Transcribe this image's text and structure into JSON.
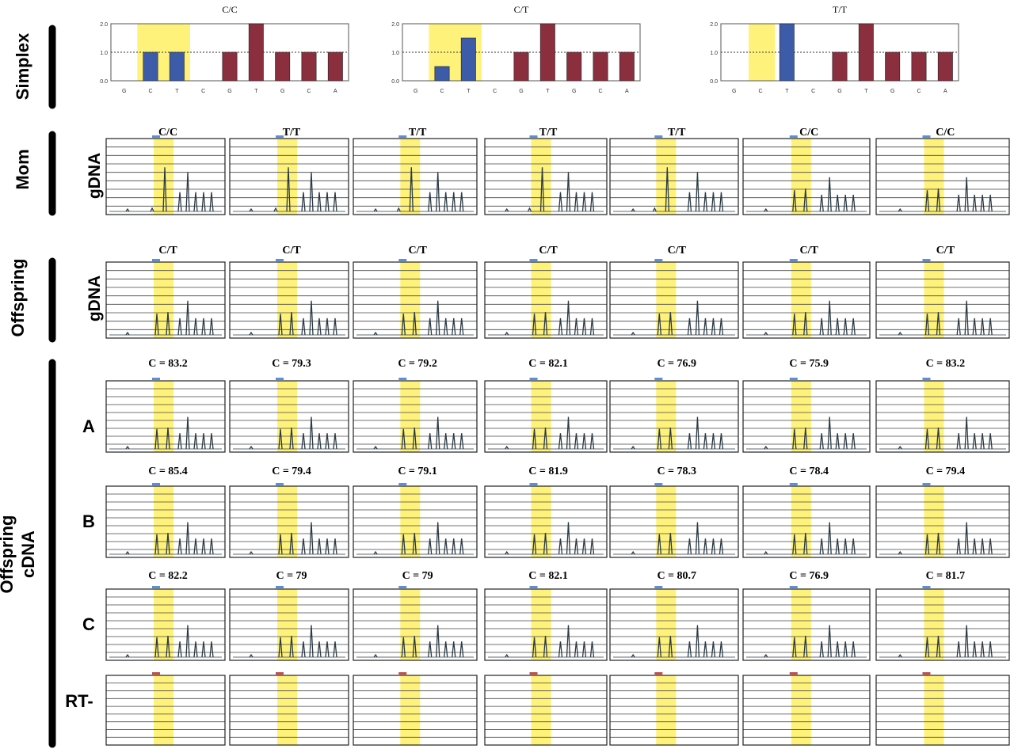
{
  "labels": {
    "simplex": "Simplex",
    "mom": "Mom",
    "offspring": "Offspring",
    "gdna": "gDNA",
    "offspring_cdna_1": "Offspring",
    "offspring_cdna_2": "cDNA",
    "row_a": "A",
    "row_b": "B",
    "row_c": "C",
    "rt_minus": "RT-"
  },
  "colors": {
    "highlight": "#FFF27A",
    "c_bar": "#3C5BA8",
    "t_bar": "#8B2E3E",
    "peak": "#2B3A45",
    "marker_blue": "#5A8FE0",
    "marker_red": "#C0504D"
  },
  "chart_data": [
    {
      "type": "bar",
      "panel": "simplex-1",
      "title": "C/C",
      "categories": [
        "G",
        "C",
        "T",
        "C",
        "G",
        "T",
        "G",
        "C",
        "A"
      ],
      "values": [
        0,
        1.0,
        1.0,
        0,
        1.0,
        2.0,
        1.0,
        1.0,
        1.0
      ],
      "yticks": [
        "0.0",
        "1.0",
        "2.0"
      ],
      "ylim": [
        0,
        2.0
      ]
    },
    {
      "type": "bar",
      "panel": "simplex-2",
      "title": "C/T",
      "categories": [
        "G",
        "C",
        "T",
        "C",
        "G",
        "T",
        "G",
        "C",
        "A"
      ],
      "values": [
        0,
        0.5,
        1.5,
        0,
        1.0,
        2.0,
        1.0,
        1.0,
        1.0
      ],
      "yticks": [
        "0.0",
        "1.0",
        "2.0"
      ],
      "ylim": [
        0,
        2.0
      ]
    },
    {
      "type": "bar",
      "panel": "simplex-3",
      "title": "T/T",
      "categories": [
        "G",
        "C",
        "T",
        "C",
        "G",
        "T",
        "G",
        "C",
        "A"
      ],
      "values": [
        0,
        0,
        2.0,
        0,
        1.0,
        2.0,
        1.0,
        1.0,
        1.0
      ],
      "yticks": [
        "0.0",
        "1.0",
        "2.0"
      ],
      "ylim": [
        0,
        2.0
      ]
    },
    {
      "type": "line",
      "panel": "pyrogram-grid",
      "rows": [
        {
          "name": "mom-gdna",
          "titles": [
            "C/C",
            "T/T",
            "T/T",
            "T/T",
            "T/T",
            "C/C",
            "C/C"
          ]
        },
        {
          "name": "offspring-gdna",
          "titles": [
            "C/T",
            "C/T",
            "C/T",
            "C/T",
            "C/T",
            "C/T",
            "C/T"
          ]
        },
        {
          "name": "offspring-cdna-a",
          "titles": [
            "C = 83.2",
            "C = 79.3",
            "C = 79.2",
            "C = 82.1",
            "C = 76.9",
            "C = 75.9",
            "C = 83.2"
          ]
        },
        {
          "name": "offspring-cdna-b",
          "titles": [
            "C = 85.4",
            "C = 79.4",
            "C = 79.1",
            "C = 81.9",
            "C = 78.3",
            "C = 78.4",
            "C = 79.4"
          ]
        },
        {
          "name": "offspring-cdna-c",
          "titles": [
            "C = 82.2",
            "C = 79",
            "C = 79",
            "C = 82.1",
            "C = 80.7",
            "C = 76.9",
            "C = 81.7"
          ]
        },
        {
          "name": "rt-minus",
          "titles": [
            "",
            "",
            "",
            "",
            "",
            "",
            ""
          ]
        }
      ]
    }
  ]
}
